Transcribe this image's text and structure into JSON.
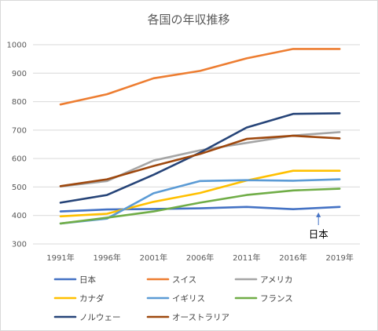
{
  "chart_data": {
    "type": "line",
    "title": "各国の年収推移",
    "xlabel": "",
    "ylabel": "",
    "categories": [
      "1991年",
      "1996年",
      "2001年",
      "2006年",
      "2011年",
      "2016年",
      "2019年"
    ],
    "ylim": [
      300,
      1000
    ],
    "yticks": [
      300,
      400,
      500,
      600,
      700,
      800,
      900,
      1000
    ],
    "grid": "horizontal",
    "legend_position": "bottom",
    "series": [
      {
        "name": "日本",
        "color": "#4472C4",
        "values": [
          414,
          421,
          423,
          425,
          430,
          422,
          430
        ]
      },
      {
        "name": "スイス",
        "color": "#ED7D31",
        "values": [
          790,
          826,
          882,
          908,
          952,
          985,
          985
        ]
      },
      {
        "name": "アメリカ",
        "color": "#A5A5A5",
        "values": [
          502,
          521,
          593,
          629,
          655,
          681,
          693
        ]
      },
      {
        "name": "カナダ",
        "color": "#FFC000",
        "values": [
          397,
          406,
          448,
          479,
          523,
          557,
          557
        ]
      },
      {
        "name": "イギリス",
        "color": "#5B9BD5",
        "values": [
          372,
          389,
          478,
          521,
          524,
          522,
          527
        ]
      },
      {
        "name": "フランス",
        "color": "#70AD47",
        "values": [
          372,
          392,
          414,
          445,
          472,
          488,
          494
        ]
      },
      {
        "name": "ノルウェー",
        "color": "#264478",
        "values": [
          445,
          472,
          543,
          621,
          709,
          757,
          759
        ]
      },
      {
        "name": "オーストラリア",
        "color": "#9E480E",
        "values": [
          503,
          527,
          574,
          616,
          669,
          680,
          671
        ]
      }
    ],
    "annotations": [
      {
        "text": "日本",
        "target_series": "日本",
        "target_category": "2019年"
      }
    ]
  }
}
